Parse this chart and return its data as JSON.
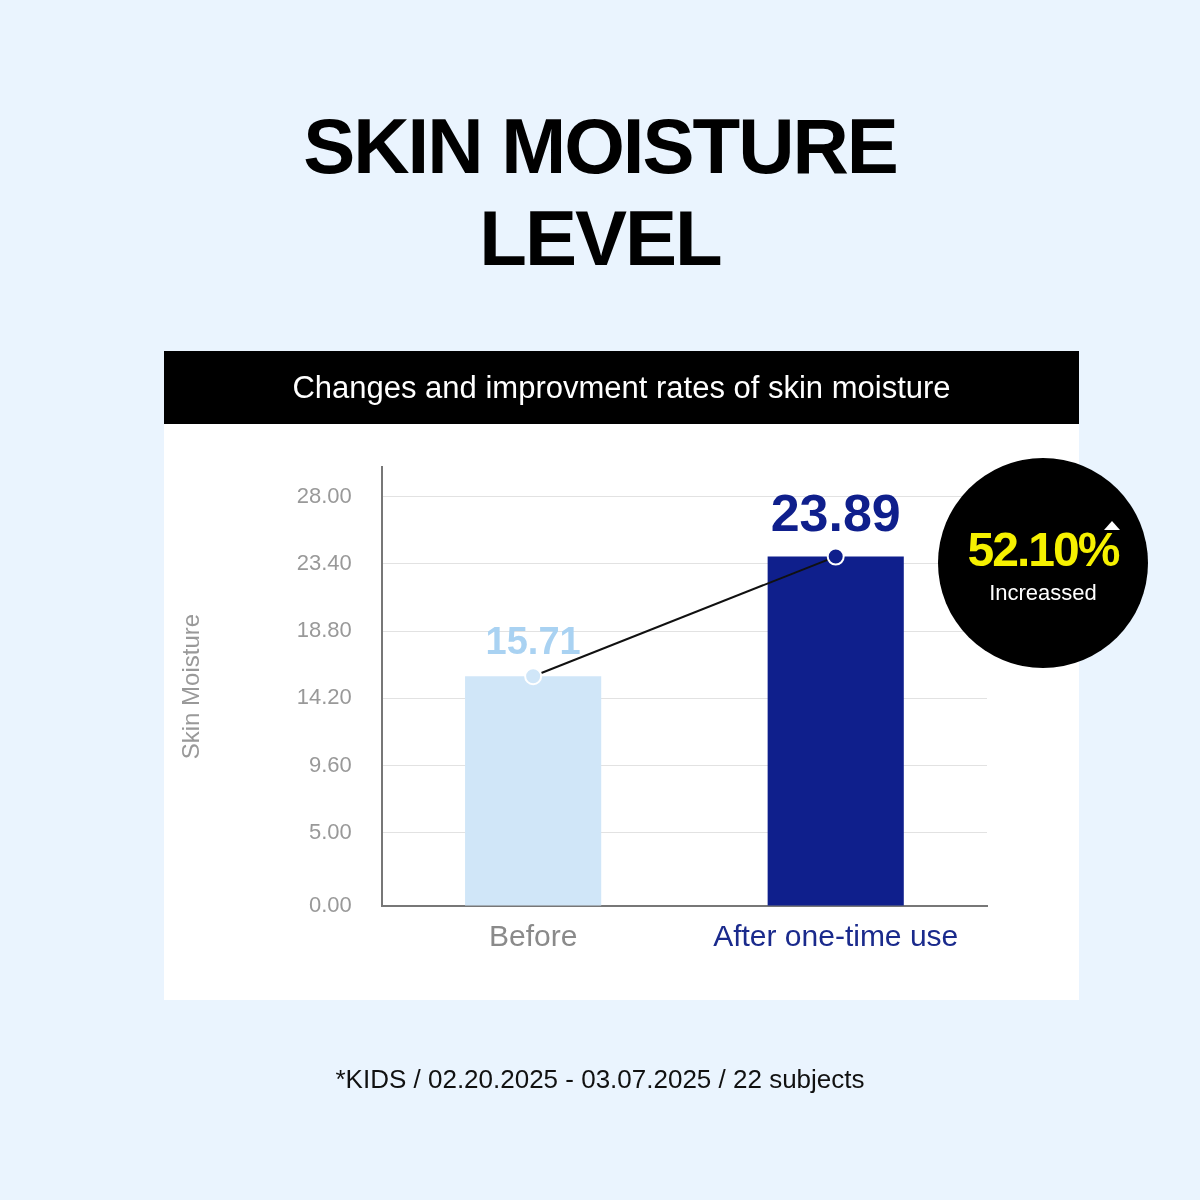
{
  "chart_data": {
    "type": "bar",
    "title": "SKIN MOISTURE LEVEL",
    "subtitle": "Changes and improvment rates of skin moisture",
    "ylabel": "Skin Moisture",
    "categories": [
      "Before",
      "After one-time use"
    ],
    "series": [
      {
        "colors": [
          "#d0e6f8",
          "#0f1f8c"
        ],
        "values": [
          15.71,
          23.89
        ],
        "value_labels": [
          "15.71",
          "23.89"
        ]
      },
      {
        "type": "line",
        "color": "#111111",
        "values": [
          15.71,
          23.89
        ],
        "marker": "circle"
      }
    ],
    "ylim": [
      0,
      30
    ],
    "yticks": [
      {
        "value": 0,
        "label": "0.00"
      },
      {
        "value": 5,
        "label": "5.00"
      },
      {
        "value": 9.6,
        "label": "9.60"
      },
      {
        "value": 14.2,
        "label": "14.20"
      },
      {
        "value": 18.8,
        "label": "18.80"
      },
      {
        "value": 23.4,
        "label": "23.40"
      },
      {
        "value": 28,
        "label": "28.00"
      }
    ],
    "grid": "y",
    "legend": false,
    "annotations": [
      "52.10%",
      "Increassed",
      "*KIDS / 02.20.2025 - 03.07.2025 / 22 subjects"
    ]
  }
}
